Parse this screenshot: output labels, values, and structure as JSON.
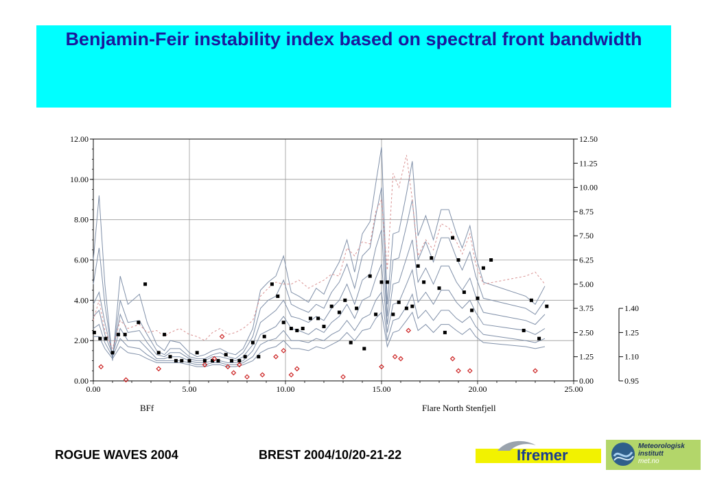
{
  "title": "Benjamin-Feir instability index based on spectral front bandwidth",
  "footer": {
    "event": "ROGUE WAVES 2004",
    "location_date": "BREST  2004/10/20-21-22"
  },
  "logos": {
    "ifremer": "Ifremer",
    "metno_line1": "Meteorologisk",
    "metno_line2": "institutt",
    "metno_line3": "met.no"
  },
  "colors": {
    "title_bg": "#00ffff",
    "title_text": "#1a1a9c",
    "band_lines": "#7f8fa8",
    "dashed_line": "#d99090",
    "squares": "#000000",
    "diamonds": "#cc2222"
  },
  "chart_data": {
    "type": "line",
    "xlabel": "BFf",
    "annotation": "Flare North Stenfjell",
    "x_ticks": [
      "0.00",
      "5.00",
      "10.00",
      "15.00",
      "20.00",
      "25.00"
    ],
    "xlim": [
      0,
      25
    ],
    "y_left_ticks": [
      "0.00",
      "2.00",
      "4.00",
      "6.00",
      "8.00",
      "10.00",
      "12.00"
    ],
    "ylim_left": [
      0,
      12
    ],
    "y_right_ticks": [
      "0.00",
      "1.25",
      "2.50",
      "3.75",
      "5.00",
      "6.25",
      "7.50",
      "8.75",
      "10.00",
      "11.25",
      "12.50"
    ],
    "ylim_right": [
      0,
      12.5
    ],
    "y_right2_ticks": [
      "0.95",
      "1.10",
      "1.25",
      "1.40"
    ],
    "ylim_right2": [
      0.95,
      1.4
    ],
    "x": [
      0,
      0.3,
      0.6,
      1,
      1.4,
      1.8,
      2.4,
      2.8,
      3.3,
      3.7,
      4,
      4.5,
      5,
      5.4,
      5.8,
      6.2,
      6.6,
      7,
      7.4,
      7.8,
      8.3,
      8.7,
      9.1,
      9.5,
      9.9,
      10.3,
      10.7,
      11.2,
      11.6,
      12,
      12.4,
      12.8,
      13.2,
      13.6,
      14,
      14.4,
      14.7,
      15,
      15.3,
      15.6,
      15.9,
      16.3,
      16.6,
      16.9,
      17.3,
      17.7,
      18.1,
      18.5,
      18.9,
      19.2,
      19.6,
      19.9,
      20.3,
      22.5,
      23,
      23.5
    ],
    "series": [
      {
        "style": "solid",
        "values": [
          6.0,
          9.2,
          4.8,
          1.0,
          5.2,
          3.8,
          4.3,
          2.9,
          1.8,
          1.5,
          2.0,
          1.9,
          1.4,
          1.2,
          1.3,
          1.5,
          1.6,
          1.4,
          1.3,
          1.6,
          2.6,
          4.5,
          4.9,
          5.2,
          6.2,
          4.4,
          4.2,
          3.9,
          4.6,
          4.3,
          5.2,
          5.9,
          7.0,
          5.4,
          7.3,
          7.9,
          9.8,
          11.6,
          3.8,
          7.3,
          7.4,
          9.3,
          10.9,
          7.2,
          8.2,
          7.0,
          8.5,
          8.5,
          7.3,
          6.6,
          7.7,
          6.2,
          4.9,
          4.2,
          3.8,
          4.7
        ]
      },
      {
        "style": "solid",
        "values": [
          4.8,
          6.6,
          3.8,
          1.2,
          4.0,
          2.9,
          3.0,
          2.3,
          1.5,
          1.3,
          1.6,
          1.6,
          1.2,
          1.1,
          1.1,
          1.3,
          1.4,
          1.2,
          1.1,
          1.4,
          2.2,
          3.6,
          4.0,
          4.2,
          5.0,
          3.8,
          3.6,
          3.4,
          3.8,
          3.6,
          4.4,
          4.9,
          5.8,
          4.6,
          6.2,
          6.6,
          8.2,
          9.6,
          3.2,
          6.0,
          6.1,
          7.7,
          9.0,
          6.0,
          6.9,
          5.9,
          7.1,
          7.1,
          6.1,
          5.5,
          6.4,
          5.2,
          4.1,
          3.6,
          3.3,
          4.0
        ]
      },
      {
        "style": "solid",
        "values": [
          3.8,
          4.4,
          2.9,
          1.3,
          3.3,
          2.4,
          2.5,
          1.9,
          1.3,
          1.2,
          1.4,
          1.4,
          1.1,
          1.0,
          1.0,
          1.2,
          1.2,
          1.1,
          1.0,
          1.2,
          1.8,
          2.9,
          3.2,
          3.5,
          4.0,
          3.2,
          3.1,
          2.9,
          3.2,
          3.0,
          3.6,
          4.0,
          4.8,
          3.8,
          5.0,
          5.3,
          6.6,
          7.5,
          2.8,
          4.8,
          4.9,
          6.1,
          7.0,
          4.9,
          5.6,
          4.8,
          5.7,
          5.7,
          4.9,
          4.5,
          5.1,
          4.2,
          3.4,
          3.0,
          2.8,
          3.3
        ]
      },
      {
        "style": "solid",
        "values": [
          3.2,
          3.5,
          2.3,
          1.3,
          2.6,
          2.0,
          2.0,
          1.6,
          1.1,
          1.1,
          1.2,
          1.2,
          1.0,
          0.9,
          0.9,
          1.0,
          1.0,
          0.9,
          0.9,
          1.0,
          1.5,
          2.3,
          2.5,
          2.7,
          3.2,
          2.6,
          2.5,
          2.3,
          2.6,
          2.4,
          2.9,
          3.2,
          3.8,
          3.1,
          4.0,
          4.2,
          5.1,
          5.8,
          2.4,
          3.8,
          3.9,
          4.8,
          5.5,
          3.9,
          4.4,
          3.8,
          4.5,
          4.5,
          3.9,
          3.6,
          4.0,
          3.4,
          2.8,
          2.5,
          2.3,
          2.6
        ]
      },
      {
        "style": "solid",
        "values": [
          2.6,
          2.8,
          1.9,
          1.2,
          2.1,
          1.7,
          1.6,
          1.3,
          1.0,
          1.0,
          1.0,
          1.0,
          0.9,
          0.8,
          0.8,
          0.9,
          0.9,
          0.8,
          0.8,
          0.9,
          1.2,
          1.8,
          2.0,
          2.1,
          2.5,
          2.0,
          2.0,
          1.9,
          2.1,
          2.0,
          2.3,
          2.5,
          3.0,
          2.5,
          3.1,
          3.3,
          4.0,
          4.4,
          2.0,
          3.0,
          3.1,
          3.7,
          4.3,
          3.1,
          3.5,
          3.0,
          3.5,
          3.5,
          3.1,
          2.9,
          3.2,
          2.7,
          2.3,
          2.0,
          1.9,
          2.1
        ]
      },
      {
        "style": "solid",
        "values": [
          2.2,
          2.2,
          1.6,
          1.1,
          1.7,
          1.4,
          1.3,
          1.1,
          0.9,
          0.9,
          0.9,
          0.9,
          0.8,
          0.7,
          0.7,
          0.8,
          0.8,
          0.7,
          0.7,
          0.8,
          1.0,
          1.4,
          1.6,
          1.7,
          2.0,
          1.6,
          1.6,
          1.5,
          1.7,
          1.6,
          1.8,
          2.0,
          2.4,
          2.0,
          2.5,
          2.6,
          3.1,
          3.4,
          1.7,
          2.4,
          2.5,
          3.0,
          3.4,
          2.5,
          2.8,
          2.4,
          2.8,
          2.8,
          2.5,
          2.3,
          2.6,
          2.2,
          1.9,
          1.7,
          1.6,
          1.7
        ]
      },
      {
        "style": "dashed",
        "values": [
          3.0,
          4.0,
          2.5,
          1.6,
          3.0,
          2.6,
          2.8,
          2.4,
          2.5,
          2.2,
          2.4,
          2.6,
          2.3,
          2.2,
          2.0,
          2.4,
          2.6,
          2.3,
          2.4,
          2.6,
          3.0,
          4.2,
          4.6,
          4.9,
          4.8,
          4.8,
          5.0,
          4.6,
          4.8,
          5.0,
          5.3,
          5.2,
          6.6,
          6.2,
          6.9,
          6.8,
          8.4,
          9.0,
          5.5,
          10.3,
          9.6,
          11.2,
          9.0,
          6.2,
          7.0,
          6.5,
          7.8,
          7.6,
          6.9,
          6.3,
          7.3,
          5.8,
          4.8,
          5.2,
          5.4,
          4.8
        ]
      }
    ],
    "squares": {
      "x": [
        0.05,
        0.35,
        0.65,
        1.0,
        1.3,
        1.65,
        2.35,
        2.7,
        3.4,
        3.7,
        4.0,
        4.3,
        4.6,
        5.0,
        5.4,
        5.8,
        6.2,
        6.5,
        6.9,
        7.2,
        7.6,
        7.9,
        8.3,
        8.6,
        8.9,
        9.3,
        9.6,
        9.9,
        10.3,
        10.6,
        10.9,
        11.3,
        11.7,
        12.0,
        12.4,
        12.8,
        13.1,
        13.4,
        13.7,
        14.1,
        14.4,
        14.7,
        15.0,
        15.3,
        15.6,
        15.9,
        16.3,
        16.6,
        16.9,
        17.2,
        17.6,
        18.0,
        18.3,
        18.7,
        19.0,
        19.3,
        19.7,
        20.0,
        20.3,
        20.7,
        22.4,
        22.8,
        23.2,
        23.6
      ],
      "values": [
        2.4,
        2.1,
        2.1,
        1.4,
        2.3,
        2.3,
        2.9,
        4.8,
        1.4,
        2.3,
        1.2,
        1.0,
        1.0,
        1.0,
        1.4,
        1.0,
        1.0,
        1.0,
        1.3,
        1.0,
        1.0,
        1.2,
        1.9,
        1.2,
        2.2,
        4.8,
        4.2,
        2.9,
        2.6,
        2.5,
        2.6,
        3.1,
        3.1,
        2.7,
        3.7,
        3.4,
        4.0,
        1.9,
        3.6,
        1.6,
        5.2,
        3.3,
        4.9,
        4.9,
        3.3,
        3.9,
        3.6,
        3.7,
        5.7,
        4.9,
        6.1,
        4.6,
        2.4,
        7.1,
        6.0,
        4.4,
        3.5,
        4.1,
        5.6,
        6.0,
        2.5,
        4.0,
        2.1,
        3.7
      ],
      "axis": "left"
    },
    "diamonds": {
      "x": [
        0.4,
        1.7,
        3.4,
        5.8,
        6.3,
        6.7,
        7.0,
        7.3,
        7.6,
        8.0,
        8.8,
        9.5,
        9.9,
        10.3,
        10.6,
        13.0,
        15.0,
        15.7,
        16.0,
        16.4,
        18.7,
        19.0,
        19.6,
        23.0
      ],
      "values": [
        0.7,
        0.05,
        0.6,
        0.8,
        1.1,
        2.2,
        0.7,
        0.4,
        0.8,
        0.2,
        0.3,
        1.2,
        1.5,
        0.3,
        0.6,
        0.2,
        0.7,
        1.2,
        1.1,
        2.5,
        1.1,
        0.5,
        0.5,
        0.5
      ],
      "axis": "left"
    }
  }
}
